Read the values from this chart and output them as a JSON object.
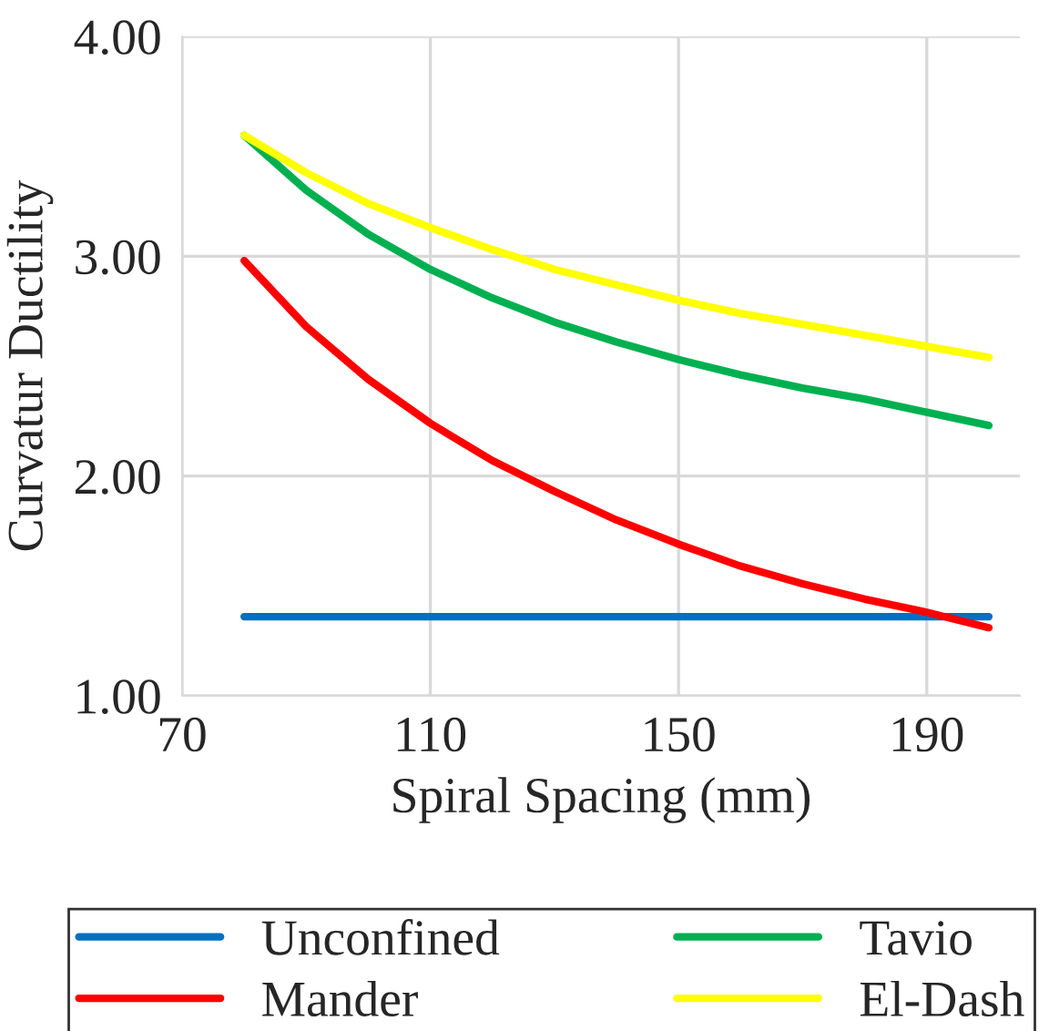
{
  "chart_data": {
    "type": "line",
    "xlabel": "Spiral Spacing (mm)",
    "ylabel": "Curvatur Ductility",
    "x": [
      80,
      90,
      100,
      110,
      120,
      130,
      140,
      150,
      160,
      170,
      180,
      190,
      200
    ],
    "series": [
      {
        "name": "Unconfined",
        "color": "#0070c0",
        "values": [
          1.36,
          1.36,
          1.36,
          1.36,
          1.36,
          1.36,
          1.36,
          1.36,
          1.36,
          1.36,
          1.36,
          1.36,
          1.36
        ]
      },
      {
        "name": "Mander",
        "color": "#ff0000",
        "values": [
          2.98,
          2.68,
          2.44,
          2.24,
          2.07,
          1.93,
          1.8,
          1.69,
          1.59,
          1.51,
          1.44,
          1.38,
          1.31
        ]
      },
      {
        "name": "Tavio",
        "color": "#00b050",
        "values": [
          3.55,
          3.3,
          3.1,
          2.94,
          2.81,
          2.7,
          2.61,
          2.53,
          2.46,
          2.4,
          2.35,
          2.29,
          2.23
        ]
      },
      {
        "name": "El-Dash",
        "color": "#ffff00",
        "values": [
          3.55,
          3.38,
          3.24,
          3.13,
          3.03,
          2.94,
          2.87,
          2.8,
          2.74,
          2.69,
          2.64,
          2.59,
          2.54
        ]
      }
    ],
    "xlim": [
      70,
      205
    ],
    "xticks": [
      70,
      110,
      150,
      190
    ],
    "ylim": [
      1,
      4
    ],
    "yticks": [
      {
        "value": 1,
        "label": "1.00"
      },
      {
        "value": 2,
        "label": "2.00"
      },
      {
        "value": 3,
        "label": "3.00"
      },
      {
        "value": 4,
        "label": "4.00"
      }
    ],
    "grid": true,
    "legend": "bottom",
    "marker": "none",
    "line_style": "solid"
  }
}
